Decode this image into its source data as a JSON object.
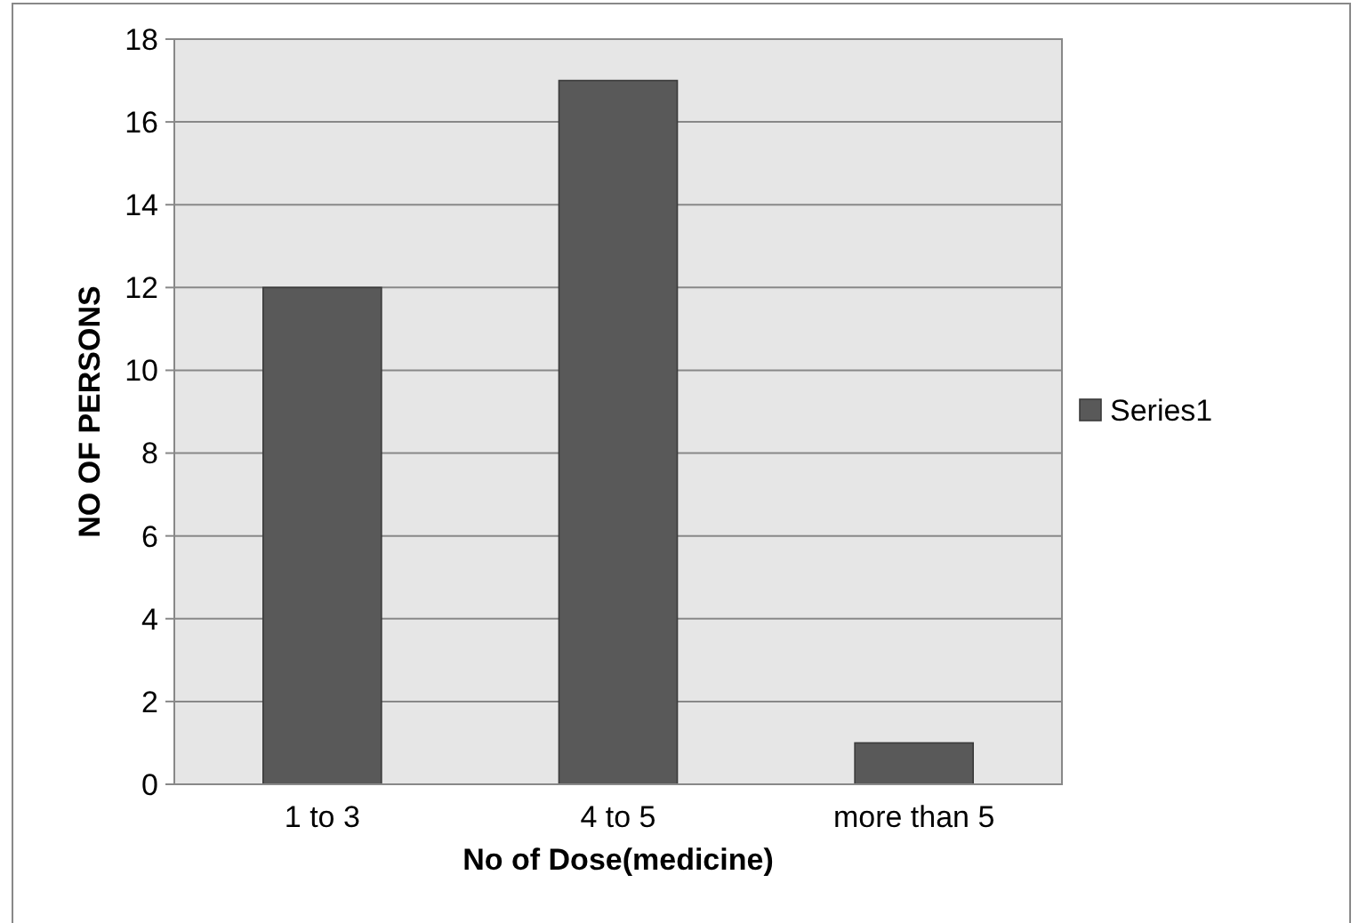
{
  "chart_data": {
    "type": "bar",
    "xlabel": "No of Dose(medicine)",
    "ylabel": "NO OF PERSONS",
    "categories": [
      "1 to 3",
      "4 to 5",
      "more than 5"
    ],
    "series": [
      {
        "name": "Series1",
        "color": "#595959",
        "values": [
          12,
          17,
          1
        ]
      }
    ],
    "ylim": [
      0,
      18
    ],
    "yticks": [
      0,
      2,
      4,
      6,
      8,
      10,
      12,
      14,
      16,
      18
    ],
    "grid": "y",
    "legend": "right"
  }
}
